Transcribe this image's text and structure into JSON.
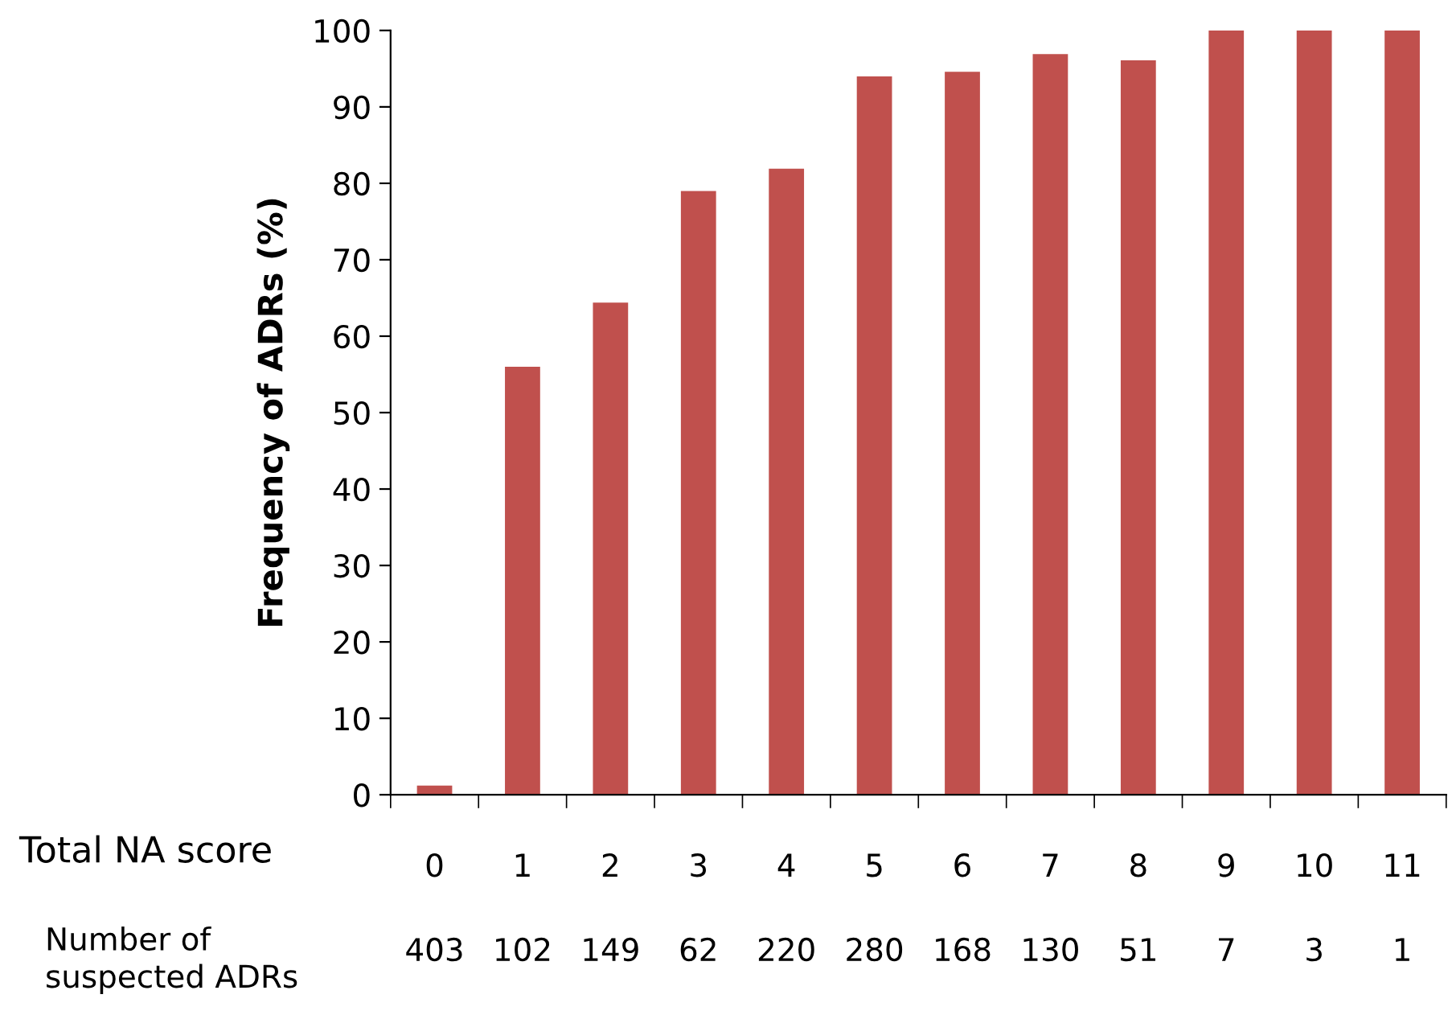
{
  "chart_data": {
    "type": "bar",
    "xlabel": "Total NA score",
    "ylabel": "Frequency of ADRs (%)",
    "categories": [
      "0",
      "1",
      "2",
      "3",
      "4",
      "5",
      "6",
      "7",
      "8",
      "9",
      "10",
      "11"
    ],
    "values": [
      1.2,
      56,
      64.4,
      79,
      81.9,
      94,
      94.6,
      96.9,
      96.1,
      100,
      100,
      100
    ],
    "color": "#c0504d",
    "ylim": [
      0,
      100
    ],
    "yticks": [
      0,
      10,
      20,
      30,
      40,
      50,
      60,
      70,
      80,
      90,
      100
    ],
    "grid": false,
    "legend": false,
    "annotations": [
      "Number of\nsuspected ADRs",
      "403",
      "102",
      "149",
      "62",
      "220",
      "280",
      "168",
      "130",
      "51",
      "7",
      "3",
      "1"
    ]
  }
}
